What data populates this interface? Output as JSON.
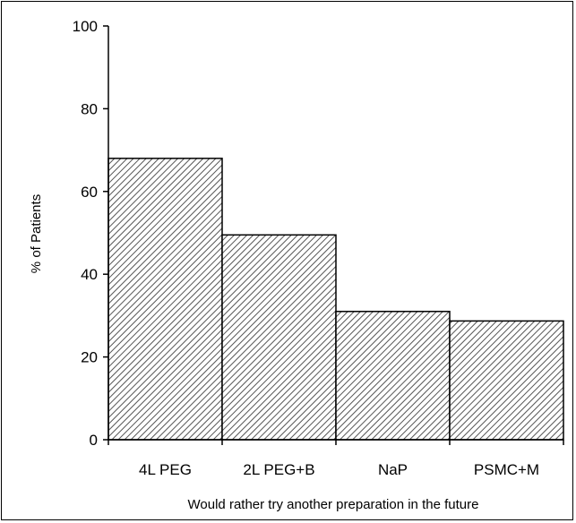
{
  "chart_data": {
    "type": "bar",
    "title": "",
    "xlabel": "Would rather try another preparation in the future",
    "ylabel": "% of Patients",
    "categories": [
      "4L PEG",
      "2L PEG+B",
      "NaP",
      "PSMC+M"
    ],
    "values": [
      68,
      49.5,
      31,
      28.7
    ],
    "ylim": [
      0,
      100
    ],
    "yticks": [
      "0",
      "20",
      "40",
      "60",
      "80",
      "100"
    ],
    "grid": false,
    "legend": "none",
    "bar_fill": "hatched gray",
    "colors": {
      "bar_stroke": "#000000",
      "hatch": "#555555",
      "bar_background": "#ffffff"
    }
  }
}
